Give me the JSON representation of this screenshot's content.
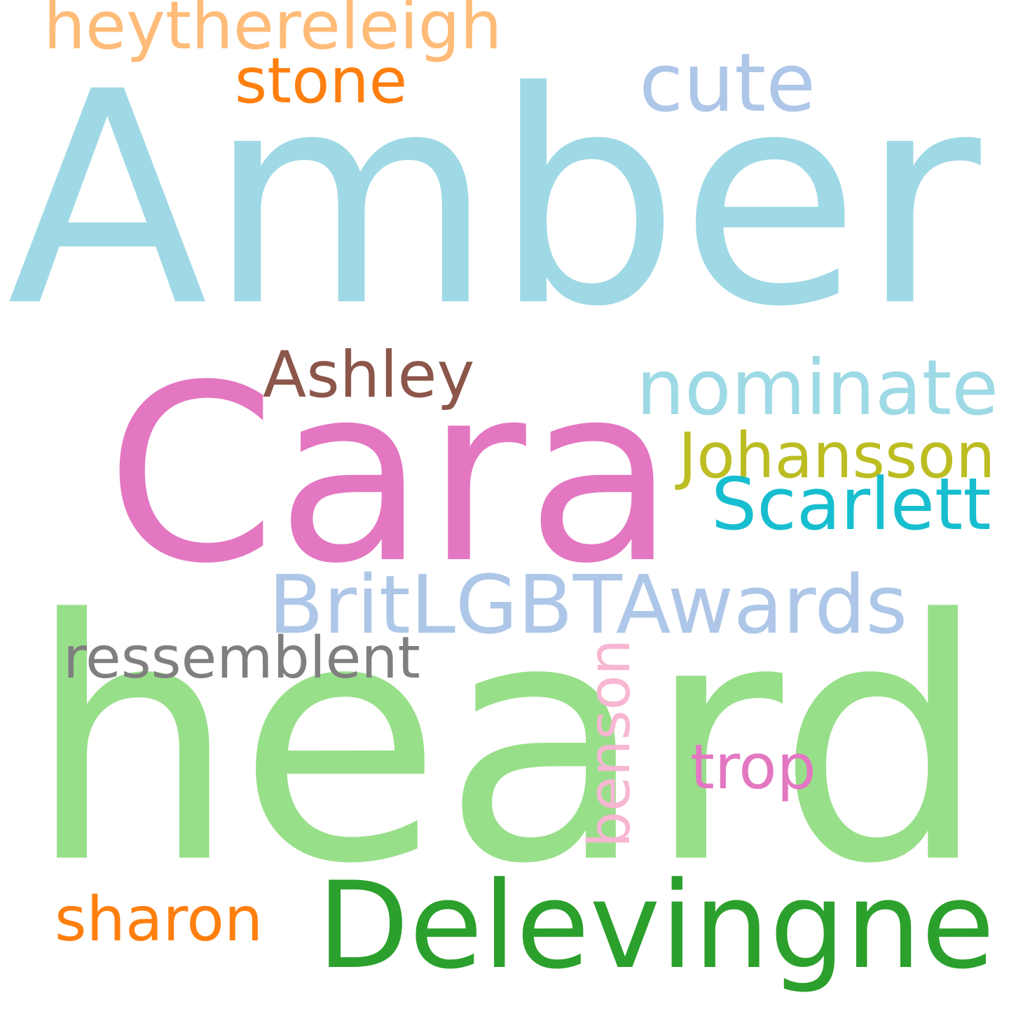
{
  "words": [
    {
      "key": "amber",
      "text": "Amber",
      "color": "#9fd9e5"
    },
    {
      "key": "heard",
      "text": "heard",
      "color": "#98df8a"
    },
    {
      "key": "cara",
      "text": "Cara",
      "color": "#e377c2"
    },
    {
      "key": "delevingne",
      "text": "Delevingne",
      "color": "#2ca02c"
    },
    {
      "key": "britlgbt",
      "text": "BritLGBTAwards",
      "color": "#aec7e8"
    },
    {
      "key": "nominate",
      "text": "nominate",
      "color": "#9edae5"
    },
    {
      "key": "johansson",
      "text": "Johansson",
      "color": "#bcbd22"
    },
    {
      "key": "scarlett",
      "text": "Scarlett",
      "color": "#17becf"
    },
    {
      "key": "ashley",
      "text": "Ashley",
      "color": "#8c564b"
    },
    {
      "key": "heythere",
      "text": "heythereleigh",
      "color": "#ffbb78"
    },
    {
      "key": "stone",
      "text": "stone",
      "color": "#ff7f0e"
    },
    {
      "key": "cute",
      "text": "cute",
      "color": "#aec7e8"
    },
    {
      "key": "ressemblent",
      "text": "ressemblent",
      "color": "#7f7f7f"
    },
    {
      "key": "benson",
      "text": "benson",
      "color": "#f7b6d2"
    },
    {
      "key": "trop",
      "text": "trop",
      "color": "#e377c2"
    },
    {
      "key": "sharon",
      "text": "sharon",
      "color": "#ff7f0e"
    }
  ]
}
